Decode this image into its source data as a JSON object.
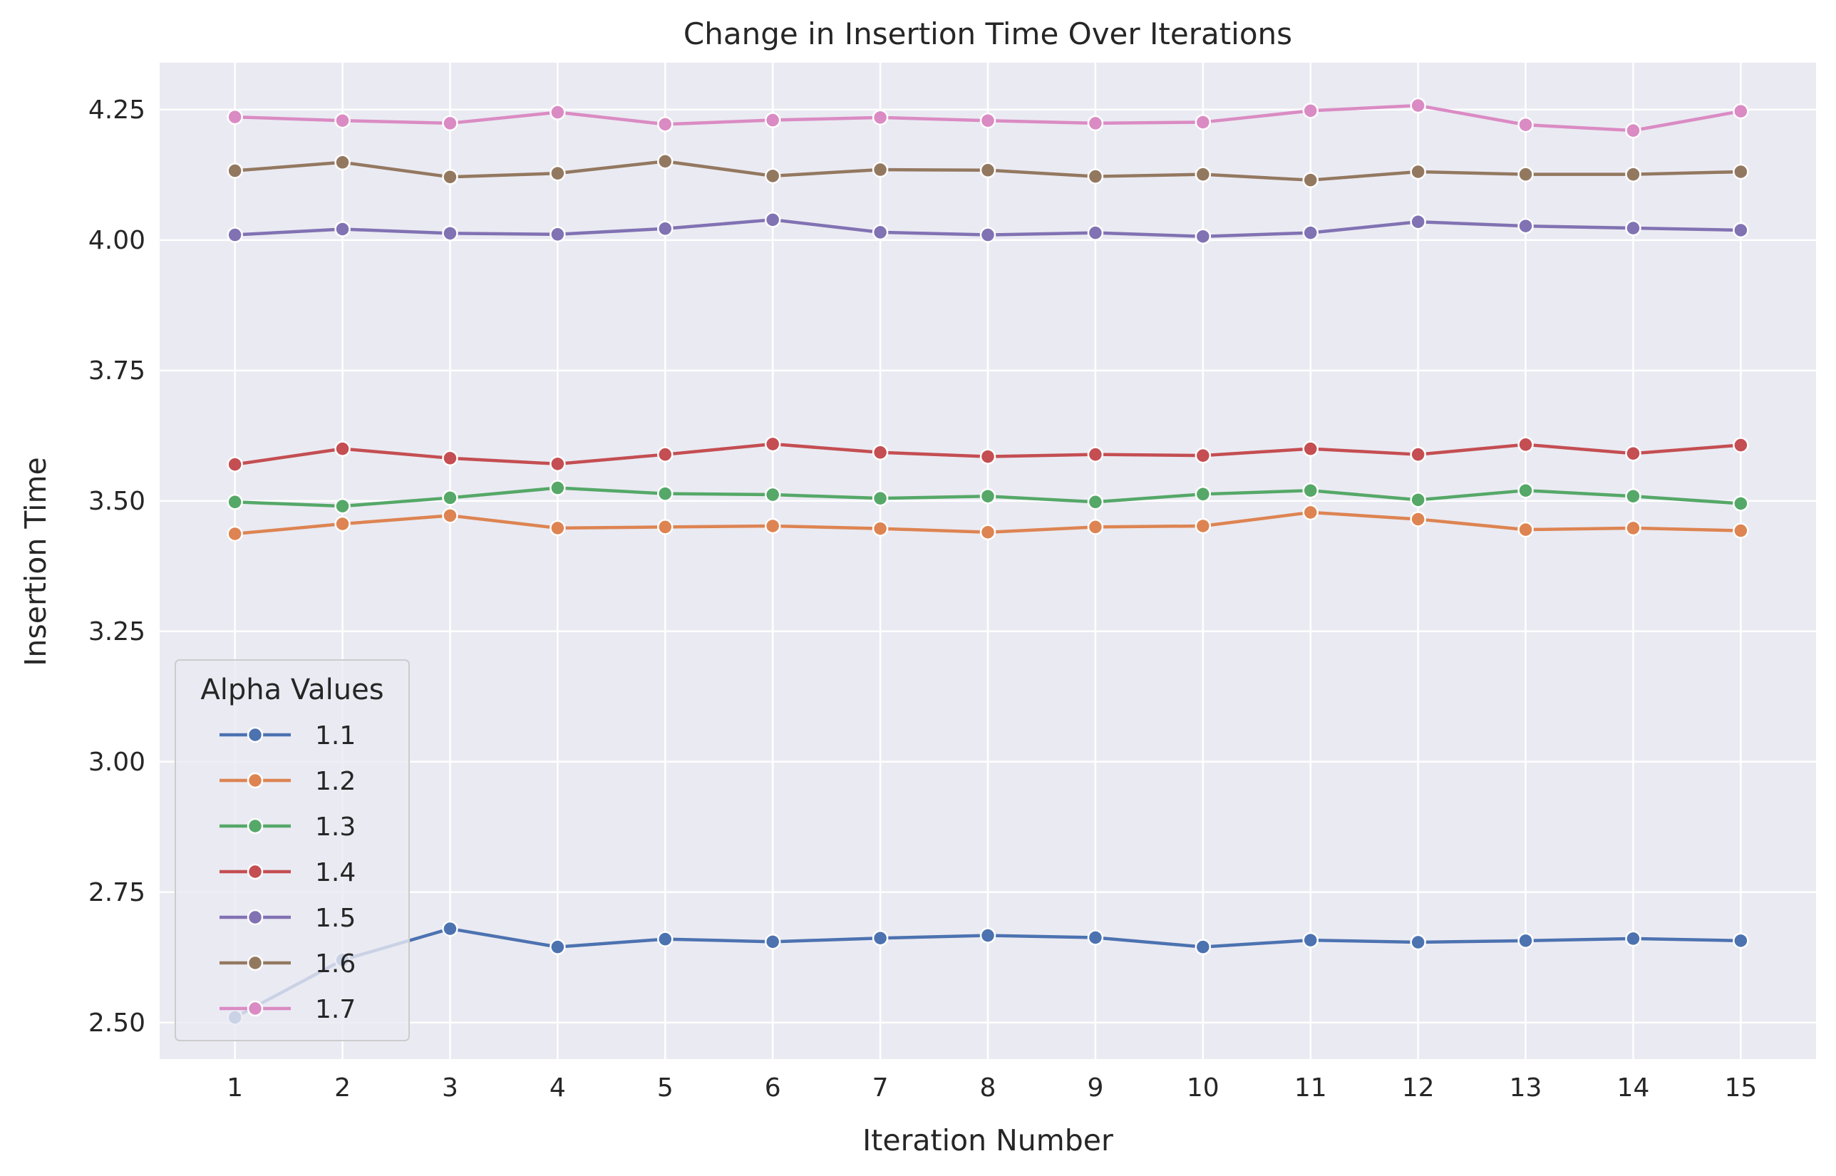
{
  "chart_data": {
    "type": "line",
    "title": "Change in Insertion Time Over Iterations",
    "xlabel": "Iteration Number",
    "ylabel": "Insertion Time",
    "x": [
      1,
      2,
      3,
      4,
      5,
      6,
      7,
      8,
      9,
      10,
      11,
      12,
      13,
      14,
      15
    ],
    "x_ticks": [
      "1",
      "2",
      "3",
      "4",
      "5",
      "6",
      "7",
      "8",
      "9",
      "10",
      "11",
      "12",
      "13",
      "14",
      "15"
    ],
    "xlim": [
      0.3,
      15.7
    ],
    "y_ticks": [
      "2.50",
      "2.75",
      "3.00",
      "3.25",
      "3.50",
      "3.75",
      "4.00",
      "4.25"
    ],
    "ylim": [
      2.43,
      4.34
    ],
    "grid": true,
    "legend": {
      "title": "Alpha Values",
      "placement": "lower-left"
    },
    "series": [
      {
        "name": "1.1",
        "color": "#4c72b0",
        "values": [
          2.51,
          2.62,
          2.68,
          2.645,
          2.66,
          2.655,
          2.662,
          2.667,
          2.663,
          2.645,
          2.658,
          2.654,
          2.657,
          2.661,
          2.657
        ]
      },
      {
        "name": "1.2",
        "color": "#dd8452",
        "values": [
          3.437,
          3.456,
          3.472,
          3.448,
          3.45,
          3.452,
          3.447,
          3.44,
          3.45,
          3.452,
          3.478,
          3.465,
          3.445,
          3.448,
          3.443
        ]
      },
      {
        "name": "1.3",
        "color": "#55a868",
        "values": [
          3.498,
          3.49,
          3.506,
          3.525,
          3.514,
          3.512,
          3.505,
          3.509,
          3.498,
          3.513,
          3.52,
          3.502,
          3.52,
          3.509,
          3.495
        ]
      },
      {
        "name": "1.4",
        "color": "#c44e52",
        "values": [
          3.57,
          3.6,
          3.582,
          3.571,
          3.589,
          3.609,
          3.593,
          3.585,
          3.589,
          3.587,
          3.6,
          3.589,
          3.608,
          3.591,
          3.607
        ]
      },
      {
        "name": "1.5",
        "color": "#8172b3",
        "values": [
          4.01,
          4.021,
          4.013,
          4.011,
          4.022,
          4.039,
          4.015,
          4.01,
          4.014,
          4.007,
          4.014,
          4.035,
          4.027,
          4.023,
          4.019
        ]
      },
      {
        "name": "1.6",
        "color": "#937860",
        "values": [
          4.133,
          4.149,
          4.121,
          4.128,
          4.151,
          4.123,
          4.135,
          4.134,
          4.122,
          4.126,
          4.115,
          4.131,
          4.126,
          4.126,
          4.131
        ]
      },
      {
        "name": "1.7",
        "color": "#da8bc3",
        "values": [
          4.236,
          4.229,
          4.224,
          4.245,
          4.222,
          4.23,
          4.235,
          4.229,
          4.224,
          4.226,
          4.248,
          4.258,
          4.221,
          4.21,
          4.247
        ]
      }
    ]
  }
}
